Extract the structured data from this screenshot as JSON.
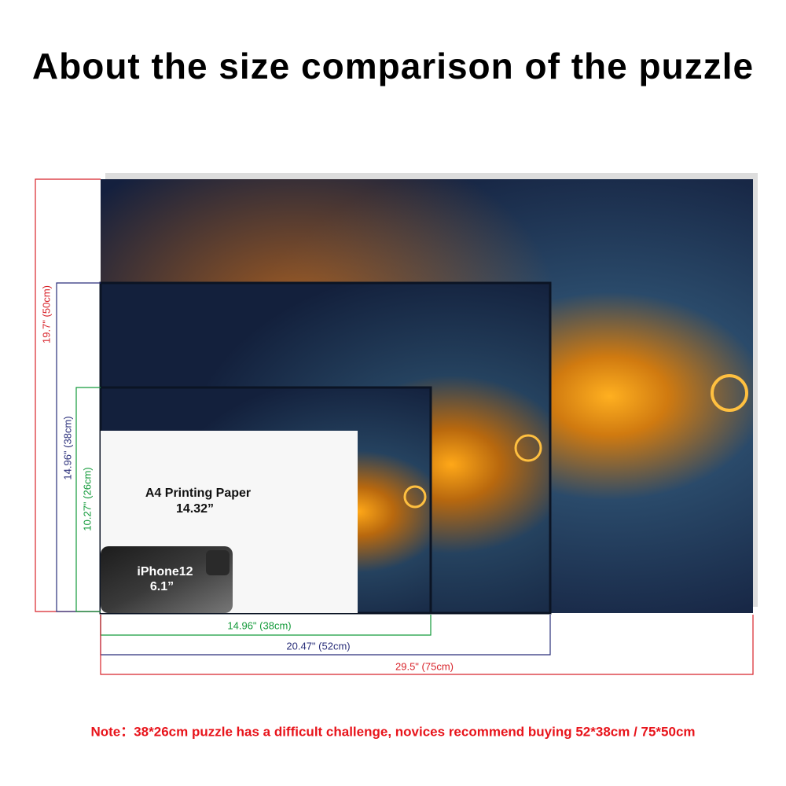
{
  "title": "About the size comparison of the puzzle",
  "heights": [
    "19.7\" (50cm)",
    "14.96\" (38cm)",
    "10.27\" (26cm)"
  ],
  "widths": [
    "14.96\" (38cm)",
    "20.47\" (52cm)",
    "29.5\" (75cm)"
  ],
  "paper": {
    "name": "A4 Printing Paper",
    "size": "14.32”"
  },
  "phone": {
    "name": "iPhone12",
    "size": "6.1”"
  },
  "note": "Note：38*26cm puzzle has a difficult challenge, novices recommend buying 52*38cm / 75*50cm"
}
